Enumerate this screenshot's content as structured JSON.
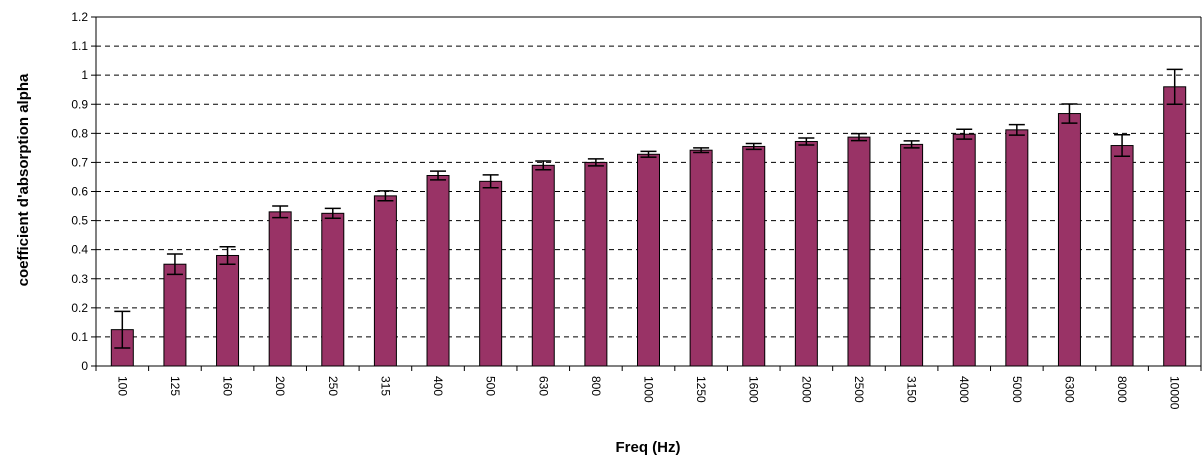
{
  "chart_data": {
    "type": "bar",
    "title": "",
    "xlabel": "Freq (Hz)",
    "ylabel": "coefficient d'absorption alpha",
    "categories": [
      "100",
      "125",
      "160",
      "200",
      "250",
      "315",
      "400",
      "500",
      "630",
      "800",
      "1000",
      "1250",
      "1600",
      "2000",
      "2500",
      "3150",
      "4000",
      "5000",
      "6300",
      "8000",
      "10000"
    ],
    "series": [
      {
        "values": [
          0.125,
          0.35,
          0.38,
          0.53,
          0.525,
          0.585,
          0.655,
          0.635,
          0.69,
          0.7,
          0.728,
          0.742,
          0.755,
          0.772,
          0.787,
          0.762,
          0.797,
          0.812,
          0.868,
          0.758,
          0.96
        ],
        "errors": [
          0.063,
          0.035,
          0.03,
          0.02,
          0.017,
          0.017,
          0.015,
          0.022,
          0.015,
          0.012,
          0.01,
          0.008,
          0.01,
          0.012,
          0.012,
          0.012,
          0.017,
          0.018,
          0.033,
          0.037,
          0.06
        ]
      }
    ],
    "ylim": [
      0,
      1.2
    ],
    "yticks": [
      "0",
      "0.1",
      "0.2",
      "0.3",
      "0.4",
      "0.5",
      "0.6",
      "0.7",
      "0.8",
      "0.9",
      "1",
      "1.1",
      "1.2"
    ],
    "grid": "horizontal dashed",
    "legend": "none",
    "colors": {
      "bar": "#993366",
      "bar_stroke": "#000000",
      "grid": "#000000",
      "axis": "#000000"
    }
  }
}
